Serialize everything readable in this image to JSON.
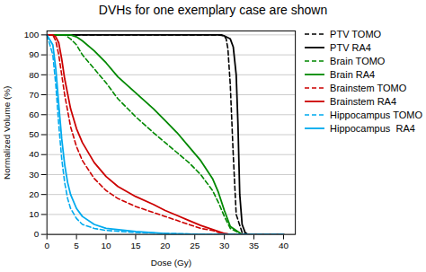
{
  "chart_data": {
    "type": "line",
    "title": "DVHs for one exemplary case are shown",
    "xlabel": "Dose (Gy)",
    "ylabel": "Normalized Volume (%)",
    "xlim": [
      0,
      42
    ],
    "ylim": [
      0,
      102
    ],
    "xticks": [
      0,
      5,
      10,
      15,
      20,
      25,
      30,
      35,
      40
    ],
    "yticks": [
      0,
      10,
      20,
      30,
      40,
      50,
      60,
      70,
      80,
      90,
      100
    ],
    "grid": "y",
    "legend": "upper right",
    "series": [
      {
        "name": "PTV TOMO",
        "color": "#000000",
        "line_style": "dashed",
        "x": [
          0,
          1,
          2,
          5,
          10,
          15,
          20,
          25,
          28,
          29,
          29.5,
          30,
          30.3,
          30.6,
          31,
          31.5,
          32,
          33,
          34,
          40
        ],
        "values": [
          100,
          100,
          100,
          100,
          100,
          100,
          100,
          100,
          100,
          100,
          100,
          99.5,
          98,
          93,
          75,
          40,
          10,
          1,
          0,
          0
        ]
      },
      {
        "name": "PTV RA4",
        "color": "#000000",
        "line_style": "solid",
        "x": [
          0,
          1,
          2,
          5,
          10,
          15,
          20,
          25,
          28,
          29,
          30,
          31,
          31.5,
          32,
          32.3,
          32.6,
          33,
          33.5,
          34,
          40
        ],
        "values": [
          100,
          100,
          100,
          100,
          100,
          100,
          100,
          100,
          100,
          100,
          99.5,
          98,
          94,
          80,
          55,
          20,
          5,
          1,
          0,
          0
        ]
      },
      {
        "name": "Brain TOMO",
        "color": "#008800",
        "line_style": "dashed",
        "x": [
          0,
          1,
          2,
          3,
          4,
          5,
          6,
          8,
          10,
          12,
          15,
          18,
          20,
          22,
          24,
          26,
          28,
          29,
          30,
          31,
          33,
          40
        ],
        "values": [
          100,
          100,
          100,
          100,
          98,
          95,
          90,
          83,
          76,
          68,
          59,
          51,
          46,
          41,
          36,
          30,
          22,
          16,
          9,
          3,
          0,
          0
        ]
      },
      {
        "name": "Brain RA4",
        "color": "#008800",
        "line_style": "solid",
        "x": [
          0,
          1,
          2,
          3,
          4,
          5,
          6,
          8,
          10,
          12,
          15,
          18,
          20,
          22,
          24,
          26,
          28,
          29,
          30,
          31,
          33,
          40
        ],
        "values": [
          100,
          100,
          100,
          100,
          100,
          99,
          97,
          92,
          86,
          79,
          71,
          63,
          57,
          51,
          44,
          37,
          28,
          21,
          12,
          4,
          0,
          0
        ]
      },
      {
        "name": "Brainstem TOMO",
        "color": "#cc0000",
        "line_style": "dashed",
        "x": [
          0,
          1,
          1.5,
          2,
          2.5,
          3,
          4,
          5,
          6,
          8,
          10,
          12,
          15,
          18,
          20,
          22,
          24,
          26,
          28,
          29,
          30,
          31,
          33,
          40
        ],
        "values": [
          100,
          100,
          97,
          90,
          80,
          70,
          54,
          44,
          37,
          28,
          22,
          18,
          14,
          11,
          9,
          7,
          5,
          3,
          2,
          1,
          0.5,
          0,
          0,
          0
        ]
      },
      {
        "name": "Brainstem RA4",
        "color": "#cc0000",
        "line_style": "solid",
        "x": [
          0,
          1,
          1.5,
          2,
          2.5,
          3,
          4,
          5,
          6,
          8,
          10,
          12,
          15,
          18,
          20,
          22,
          24,
          26,
          28,
          29,
          30,
          31,
          33,
          40
        ],
        "values": [
          100,
          100,
          99,
          96,
          88,
          78,
          63,
          53,
          46,
          36,
          29,
          24,
          19,
          15,
          12,
          9.5,
          7,
          4.5,
          2.5,
          1.5,
          0.5,
          0,
          0,
          0
        ]
      },
      {
        "name": "Hippocampus TOMO",
        "color": "#00aaee",
        "line_style": "dashed",
        "x": [
          0,
          1,
          1.5,
          2,
          2.5,
          3,
          3.5,
          4,
          5,
          6,
          8,
          10,
          15,
          20,
          25,
          30,
          40
        ],
        "values": [
          100,
          90,
          75,
          55,
          38,
          26,
          18,
          13,
          8,
          5,
          3,
          2,
          1,
          0.5,
          0.1,
          0,
          0
        ]
      },
      {
        "name": "Hippocampus  RA4",
        "color": "#00aaee",
        "line_style": "solid",
        "x": [
          0,
          1,
          1.5,
          2,
          2.5,
          3,
          3.5,
          4,
          5,
          6,
          8,
          10,
          15,
          20,
          25,
          30,
          40
        ],
        "values": [
          100,
          95,
          83,
          65,
          48,
          35,
          26,
          20,
          13,
          9,
          5,
          3,
          1.5,
          0.5,
          0.1,
          0,
          0
        ]
      }
    ]
  }
}
